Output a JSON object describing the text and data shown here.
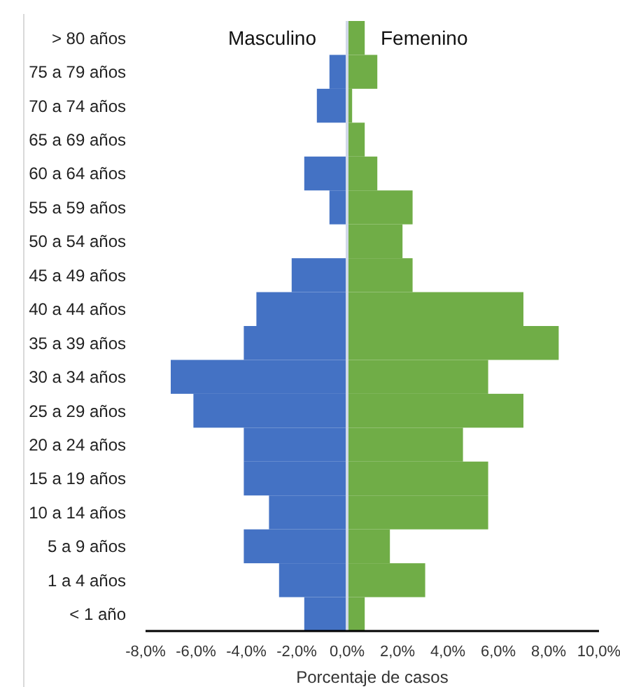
{
  "chart_data": {
    "type": "bar",
    "orientation": "horizontal",
    "stacked": true,
    "categories": [
      "> 80 años",
      "75 a 79 años",
      "70 a 74 años",
      "65 a 69 años",
      "60 a 64 años",
      "55 a 59 años",
      "50 a 54 años",
      "45 a 49 años",
      "40 a 44 años",
      "35 a 39 años",
      "30 a 34 años",
      "25 a 29 años",
      "20 a 24 años",
      "15 a 19 años",
      "10 a 14 años",
      "5 a 9 años",
      "1 a 4 años",
      "< 1 año"
    ],
    "series": [
      {
        "name": "Masculino",
        "color": "#4472c4",
        "values": [
          0,
          -0.7,
          -1.2,
          0,
          -1.7,
          -0.7,
          0,
          -2.2,
          -3.6,
          -4.1,
          -7.0,
          -6.1,
          -4.1,
          -4.1,
          -3.1,
          -4.1,
          -2.7,
          -1.7
        ]
      },
      {
        "name": "Femenino",
        "color": "#70ad47",
        "values": [
          0.7,
          1.2,
          0.2,
          0.7,
          1.2,
          2.6,
          2.2,
          2.6,
          7.0,
          8.4,
          5.6,
          7.0,
          4.6,
          5.6,
          5.6,
          1.7,
          3.1,
          0.7
        ]
      }
    ],
    "xlabel": "Porcentaje de casos",
    "xlim": [
      -8,
      10
    ],
    "xticks": [
      {
        "value": -8,
        "label": "-8,0%"
      },
      {
        "value": -6,
        "label": "-6,0%"
      },
      {
        "value": -4,
        "label": "-4,0%"
      },
      {
        "value": -2,
        "label": "-2,0%"
      },
      {
        "value": 0,
        "label": "0,0%"
      },
      {
        "value": 2,
        "label": "2,0%"
      },
      {
        "value": 4,
        "label": "4,0%"
      },
      {
        "value": 6,
        "label": "6,0%"
      },
      {
        "value": 8,
        "label": "8,0%"
      },
      {
        "value": 10,
        "label": "10,0%"
      }
    ],
    "ref_lines": [
      {
        "axis": "x",
        "value": 0,
        "color": "#d0d8e8"
      }
    ],
    "legend": "top"
  }
}
